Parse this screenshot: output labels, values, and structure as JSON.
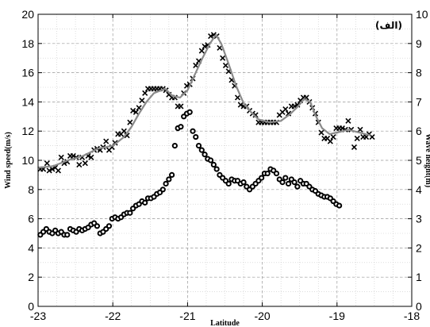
{
  "chart_data": {
    "type": "scatter",
    "panel_label": "(الف)",
    "xlabel": "Latitude",
    "ylabel_left": "Wind speed(m/s)",
    "ylabel_right": "Wave height(m)",
    "xlim": [
      -23,
      -18
    ],
    "ylim_left": [
      0,
      20
    ],
    "ylim_right": [
      0,
      10
    ],
    "x_ticks": [
      "-23",
      "-22",
      "-21",
      "-20",
      "-19",
      "-18"
    ],
    "y_ticks_left": [
      "0",
      "2",
      "4",
      "6",
      "8",
      "10",
      "12",
      "14",
      "16",
      "18",
      "20"
    ],
    "y_ticks_right": [
      "0",
      "1",
      "2",
      "3",
      "4",
      "5",
      "6",
      "7",
      "8",
      "9",
      "10"
    ],
    "grid": true,
    "series": [
      {
        "marker": "x",
        "axis": "left",
        "points": [
          [
            -22.97,
            9.4
          ],
          [
            -22.93,
            9.4
          ],
          [
            -22.88,
            9.8
          ],
          [
            -22.85,
            9.3
          ],
          [
            -22.81,
            9.4
          ],
          [
            -22.77,
            9.5
          ],
          [
            -22.73,
            9.3
          ],
          [
            -22.69,
            10.2
          ],
          [
            -22.65,
            9.8
          ],
          [
            -22.61,
            9.9
          ],
          [
            -22.57,
            10.3
          ],
          [
            -22.53,
            10.3
          ],
          [
            -22.49,
            10.2
          ],
          [
            -22.45,
            9.7
          ],
          [
            -22.41,
            10.2
          ],
          [
            -22.37,
            9.8
          ],
          [
            -22.33,
            10.3
          ],
          [
            -22.29,
            10.2
          ],
          [
            -22.25,
            10.7
          ],
          [
            -22.21,
            10.8
          ],
          [
            -22.17,
            10.7
          ],
          [
            -22.13,
            10.9
          ],
          [
            -22.09,
            11.3
          ],
          [
            -22.05,
            10.7
          ],
          [
            -22.01,
            10.9
          ],
          [
            -21.97,
            11.2
          ],
          [
            -21.93,
            11.8
          ],
          [
            -21.89,
            11.8
          ],
          [
            -21.85,
            12.0
          ],
          [
            -21.81,
            11.7
          ],
          [
            -21.77,
            12.6
          ],
          [
            -21.73,
            13.4
          ],
          [
            -21.69,
            13.3
          ],
          [
            -21.65,
            13.6
          ],
          [
            -21.61,
            14.1
          ],
          [
            -21.57,
            14.6
          ],
          [
            -21.53,
            14.9
          ],
          [
            -21.49,
            14.9
          ],
          [
            -21.45,
            14.9
          ],
          [
            -21.41,
            14.9
          ],
          [
            -21.37,
            14.9
          ],
          [
            -21.33,
            14.9
          ],
          [
            -21.29,
            14.8
          ],
          [
            -21.25,
            14.5
          ],
          [
            -21.21,
            14.3
          ],
          [
            -21.17,
            14.3
          ],
          [
            -21.13,
            13.7
          ],
          [
            -21.09,
            13.7
          ],
          [
            -21.05,
            14.6
          ],
          [
            -21.01,
            15.1
          ],
          [
            -20.97,
            15.2
          ],
          [
            -20.93,
            15.6
          ],
          [
            -20.89,
            16.5
          ],
          [
            -20.85,
            16.8
          ],
          [
            -20.81,
            17.5
          ],
          [
            -20.77,
            17.8
          ],
          [
            -20.73,
            17.9
          ],
          [
            -20.69,
            18.5
          ],
          [
            -20.65,
            18.6
          ],
          [
            -20.61,
            18.5
          ],
          [
            -20.57,
            17.7
          ],
          [
            -20.53,
            17.0
          ],
          [
            -20.49,
            16.5
          ],
          [
            -20.45,
            16.1
          ],
          [
            -20.41,
            15.5
          ],
          [
            -20.37,
            15.1
          ],
          [
            -20.33,
            14.3
          ],
          [
            -20.29,
            13.8
          ],
          [
            -20.25,
            13.7
          ],
          [
            -20.21,
            13.7
          ],
          [
            -20.17,
            13.4
          ],
          [
            -20.13,
            13.2
          ],
          [
            -20.09,
            13.1
          ],
          [
            -20.05,
            12.6
          ],
          [
            -20.01,
            12.6
          ],
          [
            -19.97,
            12.6
          ],
          [
            -19.93,
            12.6
          ],
          [
            -19.89,
            12.6
          ],
          [
            -19.85,
            12.6
          ],
          [
            -19.81,
            12.6
          ],
          [
            -19.77,
            13.1
          ],
          [
            -19.73,
            13.3
          ],
          [
            -19.69,
            13.5
          ],
          [
            -19.65,
            13.2
          ],
          [
            -19.61,
            13.7
          ],
          [
            -19.57,
            13.7
          ],
          [
            -19.53,
            13.8
          ],
          [
            -19.49,
            14.1
          ],
          [
            -19.45,
            14.3
          ],
          [
            -19.41,
            14.3
          ],
          [
            -19.37,
            14.0
          ],
          [
            -19.33,
            13.6
          ],
          [
            -19.29,
            13.2
          ],
          [
            -19.25,
            12.6
          ],
          [
            -19.21,
            11.9
          ],
          [
            -19.17,
            11.5
          ],
          [
            -19.13,
            11.5
          ],
          [
            -19.09,
            11.3
          ],
          [
            -19.05,
            11.6
          ],
          [
            -19.01,
            12.2
          ],
          [
            -18.97,
            12.2
          ],
          [
            -18.93,
            12.2
          ],
          [
            -18.89,
            12.1
          ],
          [
            -18.85,
            12.7
          ],
          [
            -18.81,
            12.1
          ],
          [
            -18.77,
            10.9
          ],
          [
            -18.73,
            11.5
          ],
          [
            -18.69,
            12.1
          ],
          [
            -18.65,
            11.6
          ],
          [
            -18.61,
            11.6
          ],
          [
            -18.57,
            11.8
          ],
          [
            -18.53,
            11.6
          ]
        ]
      },
      {
        "marker": "o",
        "axis": "right",
        "points": [
          [
            -22.97,
            2.45
          ],
          [
            -22.93,
            2.55
          ],
          [
            -22.89,
            2.65
          ],
          [
            -22.85,
            2.55
          ],
          [
            -22.81,
            2.5
          ],
          [
            -22.77,
            2.6
          ],
          [
            -22.73,
            2.5
          ],
          [
            -22.69,
            2.55
          ],
          [
            -22.65,
            2.45
          ],
          [
            -22.61,
            2.45
          ],
          [
            -22.57,
            2.65
          ],
          [
            -22.53,
            2.6
          ],
          [
            -22.49,
            2.55
          ],
          [
            -22.45,
            2.65
          ],
          [
            -22.41,
            2.6
          ],
          [
            -22.37,
            2.65
          ],
          [
            -22.33,
            2.7
          ],
          [
            -22.29,
            2.8
          ],
          [
            -22.25,
            2.85
          ],
          [
            -22.21,
            2.75
          ],
          [
            -22.17,
            2.5
          ],
          [
            -22.13,
            2.55
          ],
          [
            -22.09,
            2.65
          ],
          [
            -22.05,
            2.75
          ],
          [
            -22.01,
            3.0
          ],
          [
            -21.97,
            3.05
          ],
          [
            -21.93,
            3.0
          ],
          [
            -21.89,
            3.05
          ],
          [
            -21.85,
            3.15
          ],
          [
            -21.81,
            3.2
          ],
          [
            -21.77,
            3.2
          ],
          [
            -21.73,
            3.35
          ],
          [
            -21.69,
            3.45
          ],
          [
            -21.65,
            3.5
          ],
          [
            -21.61,
            3.6
          ],
          [
            -21.57,
            3.55
          ],
          [
            -21.53,
            3.7
          ],
          [
            -21.49,
            3.7
          ],
          [
            -21.45,
            3.75
          ],
          [
            -21.41,
            3.85
          ],
          [
            -21.37,
            3.9
          ],
          [
            -21.33,
            4.0
          ],
          [
            -21.29,
            4.2
          ],
          [
            -21.25,
            4.35
          ],
          [
            -21.21,
            4.5
          ],
          [
            -21.17,
            5.5
          ],
          [
            -21.13,
            6.1
          ],
          [
            -21.09,
            6.15
          ],
          [
            -21.05,
            6.5
          ],
          [
            -21.01,
            6.6
          ],
          [
            -20.97,
            6.65
          ],
          [
            -20.93,
            6.0
          ],
          [
            -20.89,
            5.8
          ],
          [
            -20.85,
            5.5
          ],
          [
            -20.81,
            5.35
          ],
          [
            -20.77,
            5.2
          ],
          [
            -20.73,
            5.05
          ],
          [
            -20.69,
            5.0
          ],
          [
            -20.65,
            4.85
          ],
          [
            -20.61,
            4.7
          ],
          [
            -20.57,
            4.5
          ],
          [
            -20.53,
            4.4
          ],
          [
            -20.49,
            4.3
          ],
          [
            -20.45,
            4.2
          ],
          [
            -20.41,
            4.35
          ],
          [
            -20.37,
            4.3
          ],
          [
            -20.33,
            4.3
          ],
          [
            -20.29,
            4.2
          ],
          [
            -20.25,
            4.25
          ],
          [
            -20.21,
            4.1
          ],
          [
            -20.17,
            4.0
          ],
          [
            -20.13,
            4.1
          ],
          [
            -20.09,
            4.2
          ],
          [
            -20.05,
            4.3
          ],
          [
            -20.01,
            4.4
          ],
          [
            -19.97,
            4.55
          ],
          [
            -19.93,
            4.55
          ],
          [
            -19.89,
            4.7
          ],
          [
            -19.85,
            4.65
          ],
          [
            -19.81,
            4.55
          ],
          [
            -19.77,
            4.35
          ],
          [
            -19.73,
            4.25
          ],
          [
            -19.69,
            4.4
          ],
          [
            -19.65,
            4.2
          ],
          [
            -19.61,
            4.35
          ],
          [
            -19.57,
            4.25
          ],
          [
            -19.53,
            4.1
          ],
          [
            -19.49,
            4.3
          ],
          [
            -19.45,
            4.2
          ],
          [
            -19.41,
            4.2
          ],
          [
            -19.37,
            4.1
          ],
          [
            -19.33,
            4.0
          ],
          [
            -19.29,
            3.95
          ],
          [
            -19.25,
            3.85
          ],
          [
            -19.21,
            3.8
          ],
          [
            -19.17,
            3.75
          ],
          [
            -19.13,
            3.75
          ],
          [
            -19.09,
            3.7
          ],
          [
            -19.05,
            3.6
          ],
          [
            -19.01,
            3.5
          ],
          [
            -18.97,
            3.45
          ]
        ]
      },
      {
        "marker": "line",
        "axis": "left",
        "points": [
          [
            -23.0,
            9.5
          ],
          [
            -22.8,
            9.6
          ],
          [
            -22.6,
            10.0
          ],
          [
            -22.4,
            10.3
          ],
          [
            -22.2,
            10.8
          ],
          [
            -22.0,
            11.0
          ],
          [
            -21.85,
            11.6
          ],
          [
            -21.75,
            12.3
          ],
          [
            -21.65,
            13.2
          ],
          [
            -21.55,
            14.0
          ],
          [
            -21.45,
            14.6
          ],
          [
            -21.3,
            14.9
          ],
          [
            -21.2,
            14.4
          ],
          [
            -21.1,
            14.3
          ],
          [
            -21.0,
            14.8
          ],
          [
            -20.9,
            15.9
          ],
          [
            -20.8,
            17.0
          ],
          [
            -20.7,
            18.0
          ],
          [
            -20.62,
            18.6
          ],
          [
            -20.55,
            18.0
          ],
          [
            -20.45,
            16.6
          ],
          [
            -20.35,
            15.1
          ],
          [
            -20.25,
            13.9
          ],
          [
            -20.15,
            13.3
          ],
          [
            -20.05,
            12.8
          ],
          [
            -19.9,
            12.6
          ],
          [
            -19.75,
            12.7
          ],
          [
            -19.62,
            13.2
          ],
          [
            -19.52,
            13.7
          ],
          [
            -19.44,
            14.2
          ],
          [
            -19.36,
            14.0
          ],
          [
            -19.28,
            13.0
          ],
          [
            -19.2,
            12.2
          ],
          [
            -19.1,
            11.8
          ],
          [
            -19.0,
            11.9
          ],
          [
            -18.85,
            12.1
          ],
          [
            -18.7,
            11.9
          ],
          [
            -18.55,
            11.7
          ]
        ]
      }
    ]
  }
}
